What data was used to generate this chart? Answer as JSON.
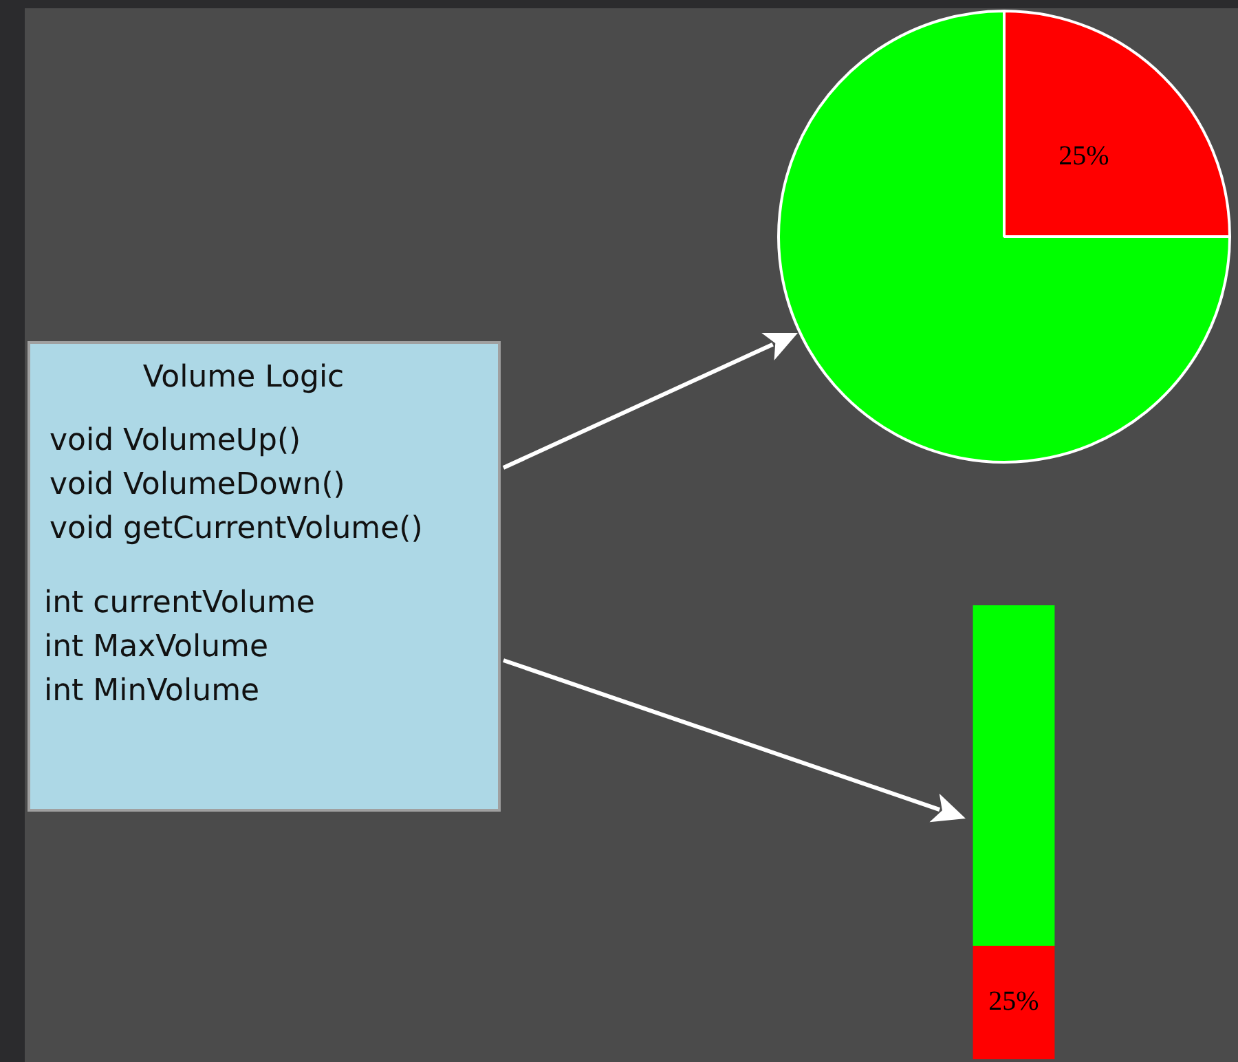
{
  "chart_data": [
    {
      "type": "other",
      "title": "Volume Logic",
      "annotations": [
        "void VolumeUp()",
        "void VolumeDown()",
        "void getCurrentVolume()",
        "int currentVolume",
        "int MaxVolume",
        "int MinVolume"
      ]
    },
    {
      "type": "pie",
      "categories": [
        null,
        null
      ],
      "values": [
        25,
        75
      ],
      "colors": [
        "#ff0000",
        "#00ff00"
      ],
      "value_labels": [
        "25%",
        null
      ],
      "legend": false
    },
    {
      "type": "bar",
      "stacked": true,
      "categories": [
        null
      ],
      "legend": false,
      "series": [
        {
          "color": "#ff0000",
          "values": [
            25
          ],
          "value_labels": [
            "25%"
          ]
        },
        {
          "color": "#00ff00",
          "values": [
            75
          ]
        }
      ]
    }
  ]
}
